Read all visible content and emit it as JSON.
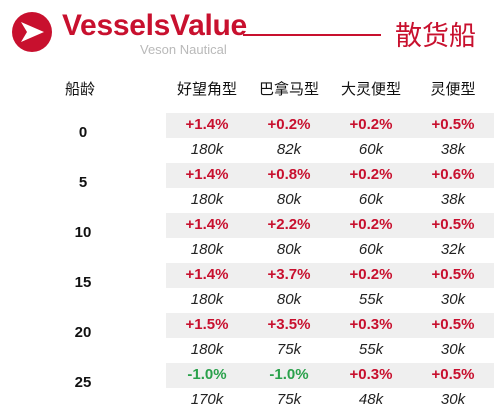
{
  "header": {
    "brand": "VesselsValue",
    "tagline": "Veson Nautical",
    "title": "散货船",
    "brand_color": "#c8102e"
  },
  "table": {
    "age_header": "船龄",
    "columns": [
      "好望角型",
      "巴拿马型",
      "大灵便型",
      "灵便型"
    ],
    "rows": [
      {
        "age": "0",
        "pct": [
          "+1.4%",
          "+0.2%",
          "+0.2%",
          "+0.5%"
        ],
        "vals": [
          "180k",
          "82k",
          "60k",
          "38k"
        ]
      },
      {
        "age": "5",
        "pct": [
          "+1.4%",
          "+0.8%",
          "+0.2%",
          "+0.6%"
        ],
        "vals": [
          "180k",
          "80k",
          "60k",
          "38k"
        ]
      },
      {
        "age": "10",
        "pct": [
          "+1.4%",
          "+2.2%",
          "+0.2%",
          "+0.5%"
        ],
        "vals": [
          "180k",
          "80k",
          "60k",
          "32k"
        ]
      },
      {
        "age": "15",
        "pct": [
          "+1.4%",
          "+3.7%",
          "+0.2%",
          "+0.5%"
        ],
        "vals": [
          "180k",
          "80k",
          "55k",
          "30k"
        ]
      },
      {
        "age": "20",
        "pct": [
          "+1.5%",
          "+3.5%",
          "+0.3%",
          "+0.5%"
        ],
        "vals": [
          "180k",
          "75k",
          "55k",
          "30k"
        ]
      },
      {
        "age": "25",
        "pct": [
          "-1.0%",
          "-1.0%",
          "+0.3%",
          "+0.5%"
        ],
        "vals": [
          "170k",
          "75k",
          "48k",
          "30k"
        ]
      }
    ],
    "positive_color": "#c8102e",
    "negative_color": "#2aa14b"
  }
}
